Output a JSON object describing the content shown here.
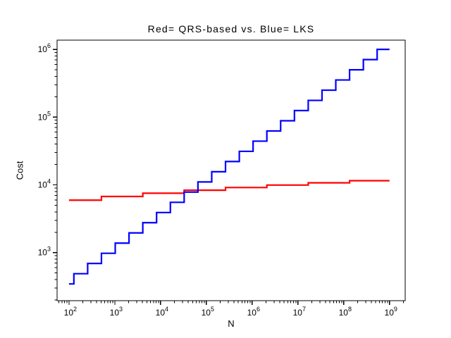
{
  "chart_data": {
    "type": "line",
    "subtype": "staircase-step",
    "title": "Red= QRS-based vs. Blue= LKS",
    "xlabel": "N",
    "ylabel": "Cost",
    "x_scale": "log",
    "y_scale": "log",
    "xlim": [
      55,
      2200000000
    ],
    "ylim": [
      195,
      1370000
    ],
    "x_tick_exponents": [
      2,
      3,
      4,
      5,
      6,
      7,
      8,
      9
    ],
    "y_tick_exponents": [
      3,
      4,
      5,
      6
    ],
    "grid": false,
    "axis_color": "#000000",
    "background_color": "#ffffff",
    "series": [
      {
        "name": "QRS-based",
        "color": "#ff0000",
        "steps": [
          {
            "from": 100,
            "to": 512,
            "cost": 5940
          },
          {
            "from": 512,
            "to": 4096,
            "cost": 6737
          },
          {
            "from": 4096,
            "to": 32768,
            "cost": 7535
          },
          {
            "from": 32768,
            "to": 262144,
            "cost": 8332
          },
          {
            "from": 262144,
            "to": 2097152,
            "cost": 9129
          },
          {
            "from": 2097152,
            "to": 16777216,
            "cost": 9926
          },
          {
            "from": 16777216,
            "to": 134217728,
            "cost": 10723
          },
          {
            "from": 134217728,
            "to": 1000000000,
            "cost": 11520
          }
        ]
      },
      {
        "name": "LKS",
        "color": "#0000ff",
        "steps": [
          {
            "from": 100,
            "to": 128,
            "cost": 345
          },
          {
            "from": 128,
            "to": 256,
            "cost": 488
          },
          {
            "from": 256,
            "to": 512,
            "cost": 691
          },
          {
            "from": 512,
            "to": 1024,
            "cost": 977
          },
          {
            "from": 1024,
            "to": 2048,
            "cost": 1381
          },
          {
            "from": 2048,
            "to": 4096,
            "cost": 1953
          },
          {
            "from": 4096,
            "to": 8192,
            "cost": 2762
          },
          {
            "from": 8192,
            "to": 16384,
            "cost": 3906
          },
          {
            "from": 16384,
            "to": 32768,
            "cost": 5524
          },
          {
            "from": 32768,
            "to": 65536,
            "cost": 7813
          },
          {
            "from": 65536,
            "to": 131072,
            "cost": 11049
          },
          {
            "from": 131072,
            "to": 262144,
            "cost": 15625
          },
          {
            "from": 262144,
            "to": 524288,
            "cost": 22097
          },
          {
            "from": 524288,
            "to": 1048576,
            "cost": 31250
          },
          {
            "from": 1048576,
            "to": 2097152,
            "cost": 44194
          },
          {
            "from": 2097152,
            "to": 4194304,
            "cost": 62500
          },
          {
            "from": 4194304,
            "to": 8388608,
            "cost": 88388
          },
          {
            "from": 8388608,
            "to": 16777216,
            "cost": 125000
          },
          {
            "from": 16777216,
            "to": 33554432,
            "cost": 176777
          },
          {
            "from": 33554432,
            "to": 67108864,
            "cost": 250000
          },
          {
            "from": 67108864,
            "to": 134217728,
            "cost": 353553
          },
          {
            "from": 134217728,
            "to": 268435456,
            "cost": 500000
          },
          {
            "from": 268435456,
            "to": 536870912,
            "cost": 707107
          },
          {
            "from": 536870912,
            "to": 1000000000,
            "cost": 1000000
          }
        ]
      }
    ]
  }
}
